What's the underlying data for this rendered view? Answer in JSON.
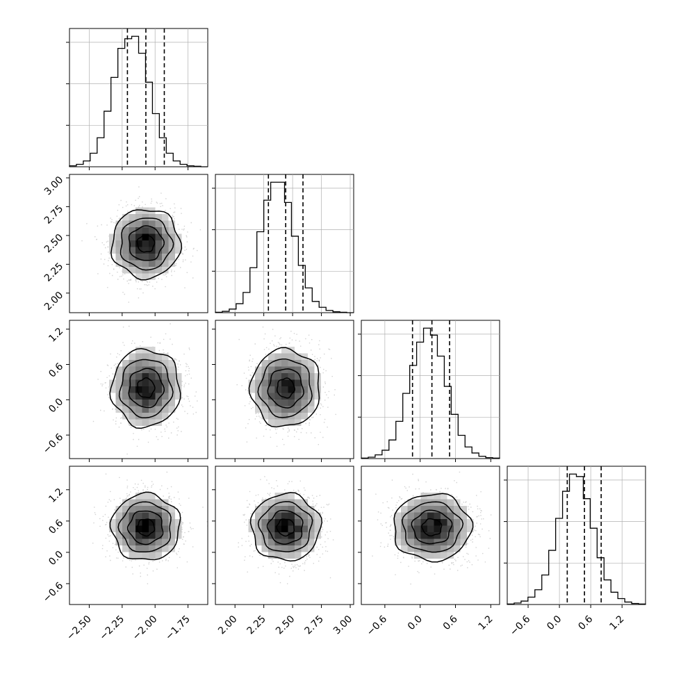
{
  "chart_data": {
    "type": "corner",
    "parameters": 4,
    "grid": true,
    "colors": {
      "line": "#000000",
      "grid": "#b0b0b0",
      "points": "#999999",
      "hist2d_max": "#000000",
      "background": "#ffffff"
    },
    "ranges": [
      [
        -2.65,
        -1.6
      ],
      [
        1.83,
        3.03
      ],
      [
        -1.0,
        1.35
      ],
      [
        -1.0,
        1.65
      ]
    ],
    "ticks": [
      {
        "values": [
          -2.5,
          -2.25,
          -2.0,
          -1.75
        ],
        "labels": [
          "−2.50",
          "−2.25",
          "−2.00",
          "−1.75"
        ]
      },
      {
        "values": [
          2.0,
          2.25,
          2.5,
          2.75,
          3.0
        ],
        "labels": [
          "2.00",
          "2.25",
          "2.50",
          "2.75",
          "3.00"
        ]
      },
      {
        "values": [
          -0.6,
          0.0,
          0.6,
          1.2
        ],
        "labels": [
          "−0.6",
          "0.0",
          "0.6",
          "1.2"
        ]
      },
      {
        "values": [
          -0.6,
          0.0,
          0.6,
          1.2
        ],
        "labels": [
          "−0.6",
          "0.0",
          "0.6",
          "1.2"
        ]
      }
    ],
    "marginals": [
      {
        "param": 0,
        "bin_edges_range": [
          -2.65,
          -1.6
        ],
        "counts": [
          2,
          5,
          12,
          28,
          60,
          115,
          185,
          245,
          265,
          270,
          235,
          175,
          110,
          60,
          28,
          12,
          5,
          2,
          1,
          0
        ],
        "quantiles": [
          -2.21,
          -2.07,
          -1.93
        ]
      },
      {
        "param": 1,
        "bin_edges_range": [
          1.83,
          3.03
        ],
        "counts": [
          1,
          3,
          8,
          20,
          45,
          100,
          180,
          250,
          290,
          290,
          245,
          170,
          105,
          55,
          25,
          12,
          5,
          2,
          1,
          0
        ],
        "quantiles": [
          2.29,
          2.44,
          2.59
        ]
      },
      {
        "param": 2,
        "bin_edges_range": [
          -1.0,
          1.35
        ],
        "counts": [
          1,
          3,
          8,
          18,
          40,
          80,
          140,
          200,
          250,
          280,
          265,
          220,
          155,
          95,
          50,
          25,
          12,
          5,
          2,
          1
        ],
        "quantiles": [
          -0.13,
          0.2,
          0.5
        ]
      },
      {
        "param": 3,
        "bin_edges_range": [
          -1.0,
          1.65
        ],
        "counts": [
          1,
          3,
          7,
          15,
          30,
          60,
          110,
          175,
          230,
          265,
          260,
          215,
          155,
          95,
          50,
          25,
          12,
          5,
          2,
          1
        ],
        "quantiles": [
          0.15,
          0.48,
          0.8
        ]
      }
    ],
    "joints": [
      {
        "x": 0,
        "y": 1,
        "center": [
          -2.07,
          2.43
        ],
        "sigma": [
          0.13,
          0.15
        ]
      },
      {
        "x": 0,
        "y": 2,
        "center": [
          -2.07,
          0.2
        ],
        "sigma": [
          0.13,
          0.33
        ]
      },
      {
        "x": 1,
        "y": 2,
        "center": [
          2.44,
          0.2
        ],
        "sigma": [
          0.15,
          0.33
        ]
      },
      {
        "x": 0,
        "y": 3,
        "center": [
          -2.07,
          0.48
        ],
        "sigma": [
          0.13,
          0.32
        ]
      },
      {
        "x": 1,
        "y": 3,
        "center": [
          2.44,
          0.48
        ],
        "sigma": [
          0.15,
          0.32
        ]
      },
      {
        "x": 2,
        "y": 3,
        "center": [
          0.2,
          0.48
        ],
        "sigma": [
          0.33,
          0.32
        ]
      }
    ],
    "contour_levels_sigma": [
      0.5,
      1.0,
      1.5,
      2.0
    ]
  }
}
